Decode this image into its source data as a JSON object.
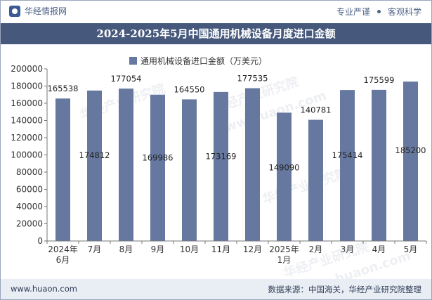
{
  "header": {
    "brand_name": "华经情报网",
    "tag_left": "专业严谨",
    "tag_right": "客观科学"
  },
  "footer": {
    "url": "www.huaon.com",
    "source": "数据来源：中国海关，华经产业研究院整理"
  },
  "watermarks": {
    "text_cn": "华经产业研究院",
    "text_url": "www.huaon.com"
  },
  "colors": {
    "bar": "#66789f",
    "title_bg": "#46597c",
    "footer_bg": "#e9edf4"
  },
  "chart_data": {
    "type": "bar",
    "title": "2024-2025年5月中国通用机械设备月度进口金额",
    "legend": "通用机械设备进口金额（万美元）",
    "legend_position": "top-center",
    "categories": [
      [
        "2024年",
        "6月"
      ],
      [
        "7月"
      ],
      [
        "8月"
      ],
      [
        "9月"
      ],
      [
        "10月"
      ],
      [
        "11月"
      ],
      [
        "12月"
      ],
      [
        "2025年",
        "1月"
      ],
      [
        "2月"
      ],
      [
        "3月"
      ],
      [
        "4月"
      ],
      [
        "5月"
      ]
    ],
    "series": [
      {
        "name": "通用机械设备进口金额（万美元）",
        "values": [
          165538,
          174812,
          177054,
          169986,
          164550,
          173169,
          177535,
          149090,
          140781,
          175414,
          175599,
          185200
        ]
      }
    ],
    "label_inside": [
      false,
      true,
      false,
      true,
      false,
      true,
      false,
      true,
      false,
      true,
      false,
      true
    ],
    "yticks": [
      0,
      20000,
      40000,
      60000,
      80000,
      100000,
      120000,
      140000,
      160000,
      180000,
      200000
    ],
    "ylim": [
      0,
      200000
    ],
    "grid": false
  }
}
